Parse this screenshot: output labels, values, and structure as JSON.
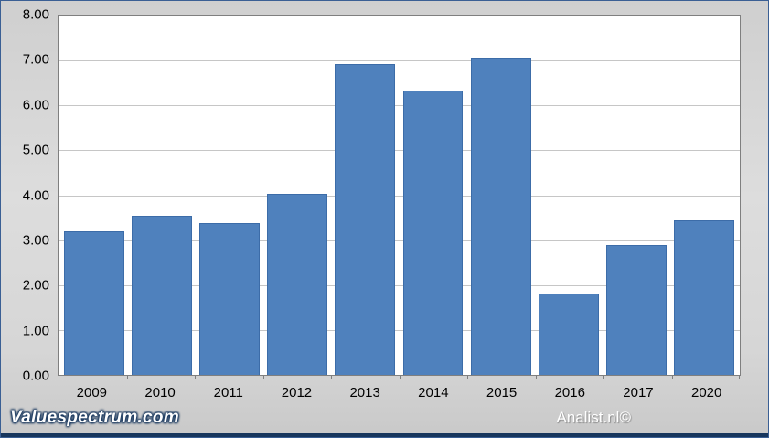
{
  "footer": {
    "left": "Valuespectrum.com",
    "right": "Analist.nl©"
  },
  "colors": {
    "bar": "#4f81bd",
    "bar_border": "#3c6ca8",
    "plot_background": "#ffffff",
    "page_background": "#d6d6d6",
    "gridline": "#c6c6c6",
    "frame": "#17365d"
  },
  "chart_data": {
    "type": "bar",
    "categories": [
      "2009",
      "2010",
      "2011",
      "2012",
      "2013",
      "2014",
      "2015",
      "2016",
      "2017",
      "2020"
    ],
    "values": [
      3.2,
      3.55,
      3.37,
      4.03,
      6.92,
      6.33,
      7.07,
      1.81,
      2.9,
      3.45
    ],
    "title": "",
    "xlabel": "",
    "ylabel": "",
    "ylim": [
      0,
      8
    ],
    "ytick_step": 1,
    "ytick_decimals": 2,
    "grid": true,
    "legend_position": "none"
  }
}
